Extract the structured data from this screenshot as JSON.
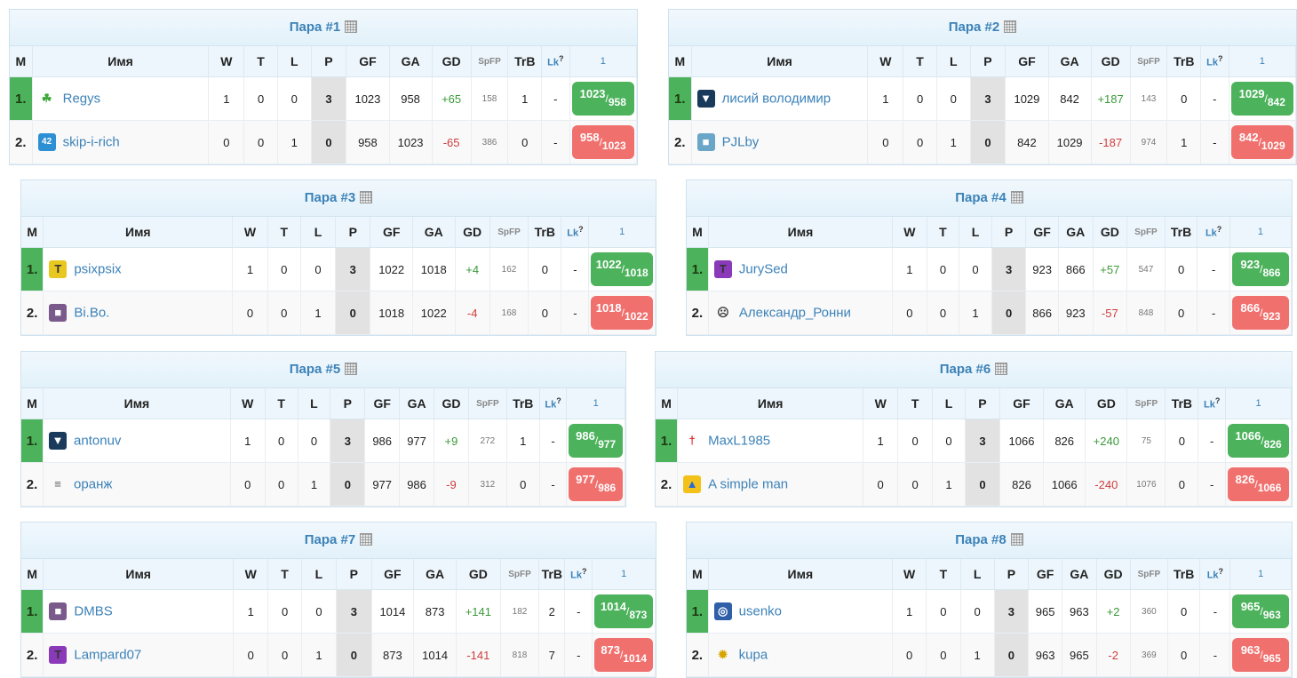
{
  "headers": {
    "m": "М",
    "name": "Имя",
    "w": "W",
    "t": "T",
    "l": "L",
    "p": "P",
    "gf": "GF",
    "ga": "GA",
    "gd": "GD",
    "spfp": "SpFP",
    "trb": "TrB",
    "lk": "Lk",
    "lk_sup": "?",
    "round": "1"
  },
  "colors": {
    "win": "#4cb25c",
    "loss": "#f0706e",
    "title": "#3c82b8"
  },
  "pairs": [
    {
      "title": "Пара #1",
      "rows": [
        {
          "pos": "1.",
          "name": "Regys",
          "avatar": "clover-icon",
          "w": "1",
          "t": "0",
          "l": "0",
          "p": "3",
          "gf": "1023",
          "ga": "958",
          "gd": "+65",
          "spfp": "158",
          "trb": "1",
          "lk": "-",
          "score_a": "1023",
          "score_b": "958"
        },
        {
          "pos": "2.",
          "name": "skip-i-rich",
          "avatar": "jersey-42-icon",
          "w": "0",
          "t": "0",
          "l": "1",
          "p": "0",
          "gf": "958",
          "ga": "1023",
          "gd": "-65",
          "spfp": "386",
          "trb": "0",
          "lk": "-",
          "score_a": "958",
          "score_b": "1023"
        }
      ]
    },
    {
      "title": "Пара #2",
      "rows": [
        {
          "pos": "1.",
          "name": "лисий володимир",
          "avatar": "jersey-icon",
          "w": "1",
          "t": "0",
          "l": "0",
          "p": "3",
          "gf": "1029",
          "ga": "842",
          "gd": "+187",
          "spfp": "143",
          "trb": "0",
          "lk": "-",
          "score_a": "1029",
          "score_b": "842"
        },
        {
          "pos": "2.",
          "name": "PJLby",
          "avatar": "team-icon",
          "w": "0",
          "t": "0",
          "l": "1",
          "p": "0",
          "gf": "842",
          "ga": "1029",
          "gd": "-187",
          "spfp": "974",
          "trb": "1",
          "lk": "-",
          "score_a": "842",
          "score_b": "1029"
        }
      ]
    },
    {
      "title": "Пара #3",
      "rows": [
        {
          "pos": "1.",
          "name": "psixpsix",
          "avatar": "shirt-icon",
          "w": "1",
          "t": "0",
          "l": "0",
          "p": "3",
          "gf": "1022",
          "ga": "1018",
          "gd": "+4",
          "spfp": "162",
          "trb": "0",
          "lk": "-",
          "score_a": "1022",
          "score_b": "1018"
        },
        {
          "pos": "2.",
          "name": "Bi.Bo.",
          "avatar": "photo-icon",
          "w": "0",
          "t": "0",
          "l": "1",
          "p": "0",
          "gf": "1018",
          "ga": "1022",
          "gd": "-4",
          "spfp": "168",
          "trb": "0",
          "lk": "-",
          "score_a": "1018",
          "score_b": "1022"
        }
      ]
    },
    {
      "title": "Пара #4",
      "rows": [
        {
          "pos": "1.",
          "name": "JurySed",
          "avatar": "shirt-icon",
          "w": "1",
          "t": "0",
          "l": "0",
          "p": "3",
          "gf": "923",
          "ga": "866",
          "gd": "+57",
          "spfp": "547",
          "trb": "0",
          "lk": "-",
          "score_a": "923",
          "score_b": "866"
        },
        {
          "pos": "2.",
          "name": "Александр_Ронни",
          "avatar": "player-icon",
          "w": "0",
          "t": "0",
          "l": "1",
          "p": "0",
          "gf": "866",
          "ga": "923",
          "gd": "-57",
          "spfp": "848",
          "trb": "0",
          "lk": "-",
          "score_a": "866",
          "score_b": "923"
        }
      ]
    },
    {
      "title": "Пара #5",
      "rows": [
        {
          "pos": "1.",
          "name": "antonuv",
          "avatar": "jersey-icon",
          "w": "1",
          "t": "0",
          "l": "0",
          "p": "3",
          "gf": "986",
          "ga": "977",
          "gd": "+9",
          "spfp": "272",
          "trb": "1",
          "lk": "-",
          "score_a": "986",
          "score_b": "977"
        },
        {
          "pos": "2.",
          "name": "оранж",
          "avatar": "lines-icon",
          "w": "0",
          "t": "0",
          "l": "1",
          "p": "0",
          "gf": "977",
          "ga": "986",
          "gd": "-9",
          "spfp": "312",
          "trb": "0",
          "lk": "-",
          "score_a": "977",
          "score_b": "986"
        }
      ]
    },
    {
      "title": "Пара #6",
      "rows": [
        {
          "pos": "1.",
          "name": "MaxL1985",
          "avatar": "figure-icon",
          "w": "1",
          "t": "0",
          "l": "0",
          "p": "3",
          "gf": "1066",
          "ga": "826",
          "gd": "+240",
          "spfp": "75",
          "trb": "0",
          "lk": "-",
          "score_a": "1066",
          "score_b": "826"
        },
        {
          "pos": "2.",
          "name": "A simple man",
          "avatar": "flag-icon",
          "w": "0",
          "t": "0",
          "l": "1",
          "p": "0",
          "gf": "826",
          "ga": "1066",
          "gd": "-240",
          "spfp": "1076",
          "trb": "0",
          "lk": "-",
          "score_a": "826",
          "score_b": "1066"
        }
      ]
    },
    {
      "title": "Пара #7",
      "rows": [
        {
          "pos": "1.",
          "name": "DMBS",
          "avatar": "photo-icon",
          "w": "1",
          "t": "0",
          "l": "0",
          "p": "3",
          "gf": "1014",
          "ga": "873",
          "gd": "+141",
          "spfp": "182",
          "trb": "2",
          "lk": "-",
          "score_a": "1014",
          "score_b": "873"
        },
        {
          "pos": "2.",
          "name": "Lampard07",
          "avatar": "shirt-icon",
          "w": "0",
          "t": "0",
          "l": "1",
          "p": "0",
          "gf": "873",
          "ga": "1014",
          "gd": "-141",
          "spfp": "818",
          "trb": "7",
          "lk": "-",
          "score_a": "873",
          "score_b": "1014"
        }
      ]
    },
    {
      "title": "Пара #8",
      "rows": [
        {
          "pos": "1.",
          "name": "usenko",
          "avatar": "badge-icon",
          "w": "1",
          "t": "0",
          "l": "0",
          "p": "3",
          "gf": "965",
          "ga": "963",
          "gd": "+2",
          "spfp": "360",
          "trb": "0",
          "lk": "-",
          "score_a": "965",
          "score_b": "963"
        },
        {
          "pos": "2.",
          "name": "kupa",
          "avatar": "bee-icon",
          "w": "0",
          "t": "0",
          "l": "1",
          "p": "0",
          "gf": "963",
          "ga": "965",
          "gd": "-2",
          "spfp": "369",
          "trb": "0",
          "lk": "-",
          "score_a": "963",
          "score_b": "965"
        }
      ]
    }
  ]
}
